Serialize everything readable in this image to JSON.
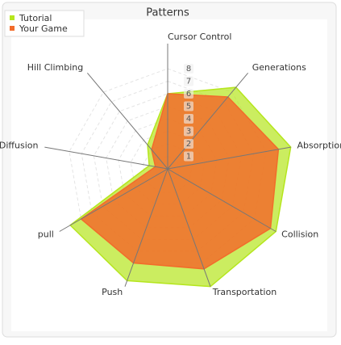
{
  "chart_data": {
    "type": "radar",
    "title": "Patterns",
    "categories": [
      "Cursor Control",
      "Generations",
      "Absorption",
      "Collision",
      "Transportation",
      "Push",
      "pull",
      "Diffusion",
      "Hill Climbing"
    ],
    "series": [
      {
        "name": "Tutorial",
        "color": "#b5e61d",
        "values": [
          6,
          8.5,
          10,
          10,
          10,
          9.5,
          9,
          1.5,
          2.5
        ]
      },
      {
        "name": "Your Game",
        "color": "#f26c2b",
        "values": [
          6,
          7.5,
          9,
          9.5,
          8.5,
          8,
          8,
          1,
          2
        ]
      }
    ],
    "rlim": [
      0,
      10
    ],
    "rticks": [
      1,
      2,
      3,
      4,
      5,
      6,
      7,
      8
    ],
    "grid": true,
    "legend": "top-left"
  }
}
